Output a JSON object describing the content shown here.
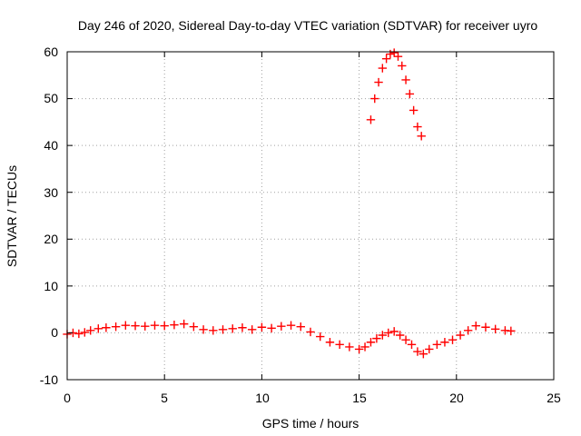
{
  "chart_data": {
    "type": "scatter",
    "title": "Day 246 of 2020, Sidereal Day-to-day VTEC variation (SDTVAR) for receiver uyro",
    "xlabel": "GPS time / hours",
    "ylabel": "SDTVAR / TECUs",
    "xlim": [
      0,
      25
    ],
    "ylim": [
      -10,
      60
    ],
    "xticks": [
      "0",
      "5",
      "10",
      "15",
      "20",
      "25"
    ],
    "yticks": [
      "-10",
      "0",
      "10",
      "20",
      "30",
      "40",
      "50",
      "60"
    ],
    "grid": true,
    "marker": "+",
    "series": [
      {
        "name": "SDTVAR",
        "color": "#ff0000",
        "x": [
          0.0,
          0.3,
          0.6,
          0.9,
          1.2,
          1.6,
          2.0,
          2.5,
          3.0,
          3.5,
          4.0,
          4.5,
          5.0,
          5.5,
          6.0,
          6.5,
          7.0,
          7.5,
          8.0,
          8.5,
          9.0,
          9.5,
          10.0,
          10.5,
          11.0,
          11.5,
          12.0,
          12.5,
          13.0,
          13.5,
          14.0,
          14.5,
          15.0,
          15.3,
          15.6,
          15.9,
          16.2,
          16.5,
          16.8,
          17.1,
          17.4,
          17.7,
          18.0,
          18.3,
          18.6,
          19.0,
          19.4,
          19.8,
          20.2,
          20.6,
          21.0,
          21.5,
          22.0,
          22.5,
          22.8,
          15.6,
          15.8,
          16.0,
          16.2,
          16.4,
          16.6,
          16.8,
          17.0,
          17.2,
          17.4,
          17.6,
          17.8,
          18.0,
          18.2
        ],
        "y": [
          -0.3,
          0.0,
          -0.2,
          0.1,
          0.5,
          0.9,
          1.1,
          1.3,
          1.6,
          1.5,
          1.4,
          1.6,
          1.5,
          1.7,
          1.9,
          1.3,
          0.7,
          0.5,
          0.7,
          0.9,
          1.1,
          0.7,
          1.2,
          1.0,
          1.4,
          1.6,
          1.3,
          0.2,
          -0.8,
          -2.0,
          -2.5,
          -3.0,
          -3.5,
          -3.0,
          -2.0,
          -1.2,
          -0.5,
          0.0,
          0.3,
          -0.5,
          -1.5,
          -2.5,
          -4.0,
          -4.5,
          -3.5,
          -2.5,
          -2.0,
          -1.5,
          -0.5,
          0.5,
          1.5,
          1.2,
          0.8,
          0.5,
          0.4,
          45.5,
          50.0,
          53.5,
          56.5,
          58.5,
          59.5,
          59.8,
          59.0,
          57.0,
          54.0,
          51.0,
          47.5,
          44.0,
          42.0
        ]
      }
    ]
  }
}
